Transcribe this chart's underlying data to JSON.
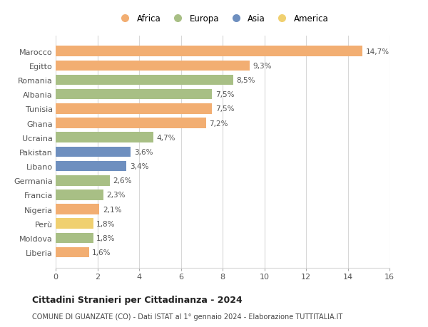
{
  "countries": [
    "Marocco",
    "Egitto",
    "Romania",
    "Albania",
    "Tunisia",
    "Ghana",
    "Ucraina",
    "Pakistan",
    "Libano",
    "Germania",
    "Francia",
    "Nigeria",
    "Perù",
    "Moldova",
    "Liberia"
  ],
  "values": [
    14.7,
    9.3,
    8.5,
    7.5,
    7.5,
    7.2,
    4.7,
    3.6,
    3.4,
    2.6,
    2.3,
    2.1,
    1.8,
    1.8,
    1.6
  ],
  "labels": [
    "14,7%",
    "9,3%",
    "8,5%",
    "7,5%",
    "7,5%",
    "7,2%",
    "4,7%",
    "3,6%",
    "3,4%",
    "2,6%",
    "2,3%",
    "2,1%",
    "1,8%",
    "1,8%",
    "1,6%"
  ],
  "continents": [
    "Africa",
    "Africa",
    "Europa",
    "Europa",
    "Africa",
    "Africa",
    "Europa",
    "Asia",
    "Asia",
    "Europa",
    "Europa",
    "Africa",
    "America",
    "Europa",
    "Africa"
  ],
  "colors": {
    "Africa": "#F2AE72",
    "Europa": "#A8BF85",
    "Asia": "#6E8FBF",
    "America": "#F0D070"
  },
  "legend_order": [
    "Africa",
    "Europa",
    "Asia",
    "America"
  ],
  "xlim": [
    0,
    16
  ],
  "xticks": [
    0,
    2,
    4,
    6,
    8,
    10,
    12,
    14,
    16
  ],
  "title": "Cittadini Stranieri per Cittadinanza - 2024",
  "subtitle": "COMUNE DI GUANZATE (CO) - Dati ISTAT al 1° gennaio 2024 - Elaborazione TUTTITALIA.IT",
  "background_color": "#ffffff",
  "grid_color": "#d8d8d8"
}
